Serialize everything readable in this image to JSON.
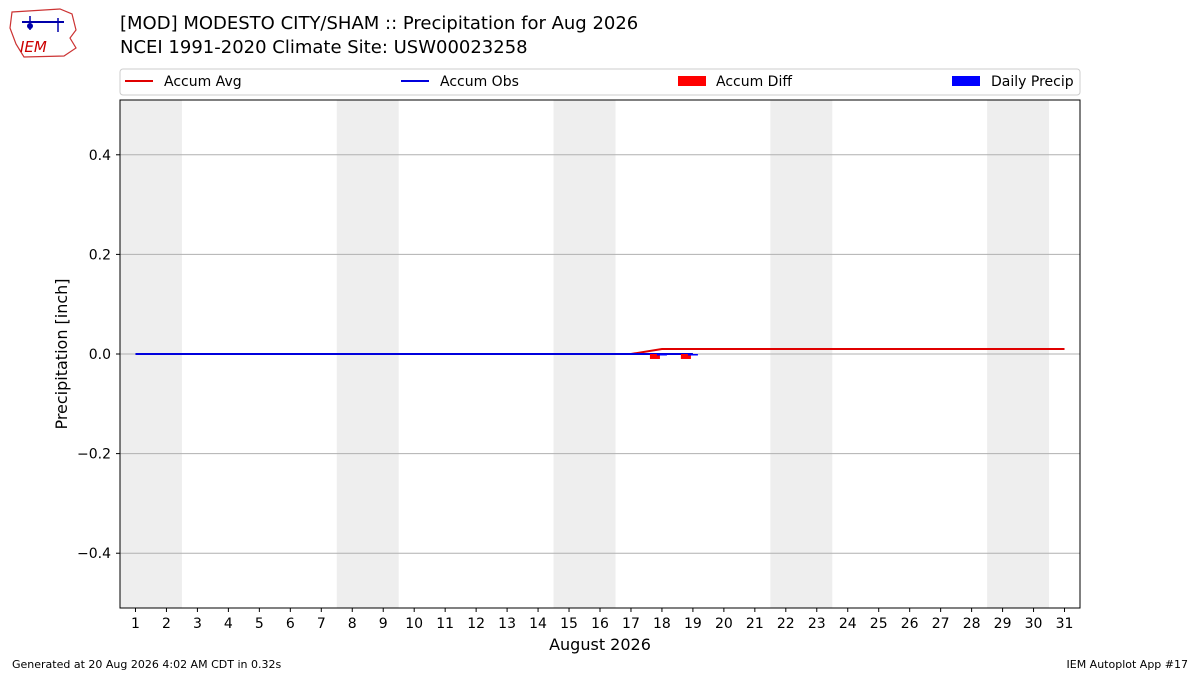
{
  "header": {
    "title_line1": "[MOD] MODESTO CITY/SHAM :: Precipitation for Aug 2026",
    "title_line2": "NCEI 1991-2020 Climate Site: USW00023258",
    "logo_text": "IEM"
  },
  "footer": {
    "left": "Generated at 20 Aug 2026 4:02 AM CDT in 0.32s",
    "right": "IEM Autoplot App #17"
  },
  "colors": {
    "accum_avg": "#e00000",
    "accum_obs": "#0000dd",
    "accum_diff": "#ff0000",
    "daily_precip": "#0000ff",
    "weekend_band": "#eeeeee",
    "grid": "#b0b0b0"
  },
  "chart_data": {
    "type": "line",
    "xlabel": "August 2026",
    "ylabel": "Precipitation [inch]",
    "xlim": [
      0.5,
      31.5
    ],
    "ylim": [
      -0.51,
      0.51
    ],
    "grid": "horizontal",
    "legend_placement": "top",
    "x_ticks": [
      1,
      2,
      3,
      4,
      5,
      6,
      7,
      8,
      9,
      10,
      11,
      12,
      13,
      14,
      15,
      16,
      17,
      18,
      19,
      20,
      21,
      22,
      23,
      24,
      25,
      26,
      27,
      28,
      29,
      30,
      31
    ],
    "y_ticks": [
      -0.4,
      -0.2,
      0.0,
      0.2,
      0.4
    ],
    "y_tick_labels": [
      "−0.4",
      "−0.2",
      "0.0",
      "0.2",
      "0.4"
    ],
    "weekend_bands": [
      [
        0.5,
        2.5
      ],
      [
        7.5,
        9.5
      ],
      [
        14.5,
        16.5
      ],
      [
        21.5,
        23.5
      ],
      [
        28.5,
        30.5
      ]
    ],
    "legend": [
      "Accum Avg",
      "Accum Obs",
      "Accum Diff",
      "Daily Precip"
    ],
    "series": [
      {
        "name": "Accum Avg",
        "kind": "line",
        "x": [
          1,
          2,
          3,
          4,
          5,
          6,
          7,
          8,
          9,
          10,
          11,
          12,
          13,
          14,
          15,
          16,
          17,
          18,
          19,
          20,
          21,
          22,
          23,
          24,
          25,
          26,
          27,
          28,
          29,
          30,
          31
        ],
        "values": [
          0,
          0,
          0,
          0,
          0,
          0,
          0,
          0,
          0,
          0,
          0,
          0,
          0,
          0,
          0,
          0,
          0,
          0.01,
          0.01,
          0.01,
          0.01,
          0.01,
          0.01,
          0.01,
          0.01,
          0.01,
          0.01,
          0.01,
          0.01,
          0.01,
          0.01
        ]
      },
      {
        "name": "Accum Obs",
        "kind": "line",
        "x": [
          1,
          2,
          3,
          4,
          5,
          6,
          7,
          8,
          9,
          10,
          11,
          12,
          13,
          14,
          15,
          16,
          17,
          18,
          19
        ],
        "values": [
          0,
          0,
          0,
          0,
          0,
          0,
          0,
          0,
          0,
          0,
          0,
          0,
          0,
          0,
          0,
          0,
          0,
          0,
          0
        ]
      },
      {
        "name": "Accum Diff",
        "kind": "bar",
        "x": [
          18,
          19
        ],
        "values": [
          -0.01,
          -0.01
        ]
      },
      {
        "name": "Daily Precip",
        "kind": "bar",
        "x": [
          18,
          19
        ],
        "values": [
          0,
          0
        ]
      }
    ]
  }
}
